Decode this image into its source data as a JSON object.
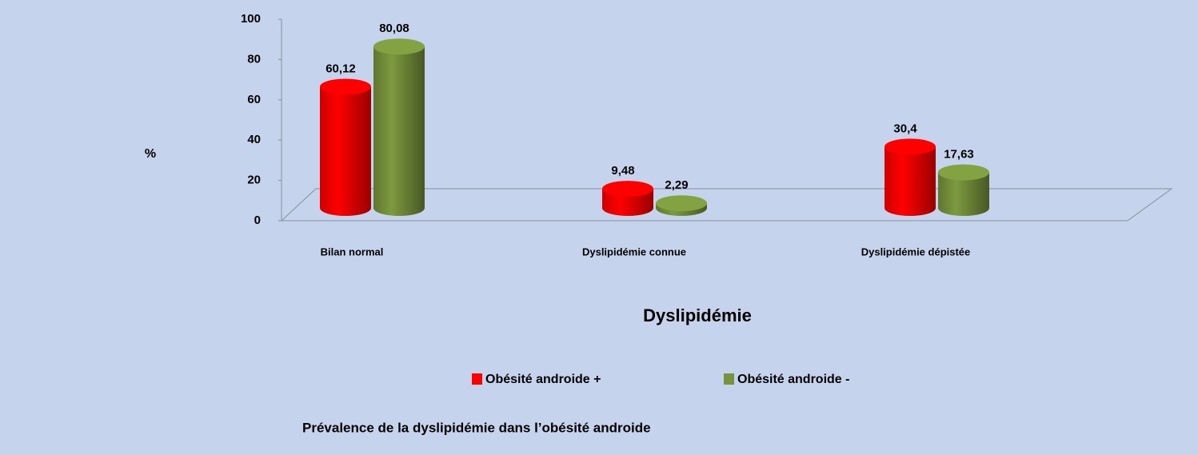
{
  "chart_data": {
    "type": "bar3d",
    "title": "Prévalence de la dyslipidémie dans l’obésité androide",
    "x_label": "Dyslipidémie",
    "y_label": "%",
    "categories": [
      "Bilan normal",
      "Dyslipidémie connue",
      "Dyslipidémie dépistée"
    ],
    "series": [
      {
        "name": "Obésité androide +",
        "color": "#ff0000",
        "values": [
          60.12,
          9.48,
          30.4
        ],
        "value_labels": [
          "60,12",
          "9,48",
          "30,4"
        ]
      },
      {
        "name": "Obésité androide -",
        "color": "#77933c",
        "values": [
          80.08,
          2.29,
          17.63
        ],
        "value_labels": [
          "80,08",
          "2,29",
          "17,63"
        ]
      }
    ],
    "ylim": [
      0,
      100
    ],
    "yticks": [
      0,
      20,
      40,
      60,
      80,
      100
    ],
    "legend": "bottom"
  }
}
